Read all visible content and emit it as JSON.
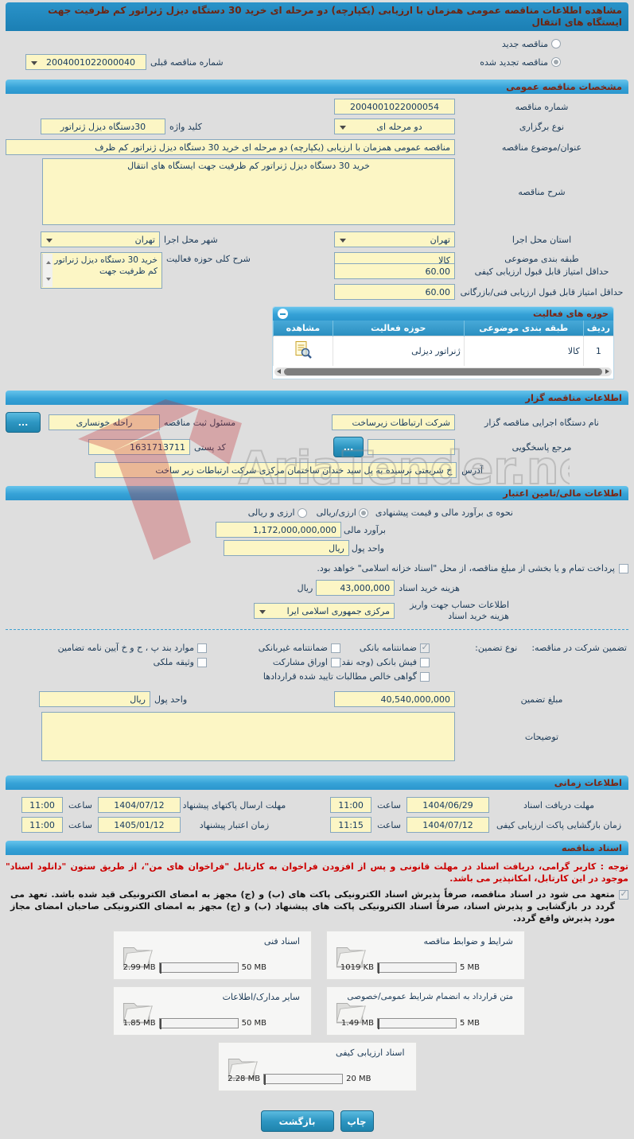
{
  "page": {
    "title": "مشاهده اطلاعات مناقصه عمومی همزمان با ارزیابی (یکپارچه) دو مرحله ای خرید 30 دستگاه دیزل ژنراتور کم ظرفیت جهت ایستگاه های انتقال"
  },
  "top": {
    "radio_new_label": "مناقصه جدید",
    "radio_renewed_label": "مناقصه تجدید شده",
    "prev_number_label": "شماره مناقصه قبلی",
    "prev_number_value": "2004001022000040"
  },
  "general": {
    "header": "مشخصات مناقصه عمومی",
    "number_label": "شماره مناقصه",
    "number_value": "2004001022000054",
    "type_label": "نوع برگزاری",
    "type_value": "دو مرحله ای",
    "keyword_label": "کلید واژه",
    "keyword_value": "30دستگاه دیزل ژنراتور",
    "subject_label": "عنوان/موضوع مناقصه",
    "subject_value": "مناقصه عمومی همزمان با ارزیابی (یکپارچه) دو مرحله ای خرید 30 دستگاه دیزل ژنراتور کم ظرف",
    "desc_label": "شرح مناقصه",
    "desc_value": "خرید 30 دستگاه دیزل ژنراتور کم ظرفیت جهت ایستگاه های انتقال",
    "province_label": "استان محل اجرا",
    "province_value": "تهران",
    "city_label": "شهر محل اجرا",
    "city_value": "تهران",
    "category_label": "طبقه بندی موضوعی",
    "category_value": "کالا",
    "activity_label": "شرح کلی حوزه فعالیت",
    "activity_value": "خرید 30 دستگاه دیزل ژنراتور کم ظرفیت جهت",
    "min_quality_label": "حداقل امتیاز قابل قبول ارزیابی کیفی",
    "min_quality_value": "60.00",
    "min_tech_label": "حداقل امتیاز قابل قبول ارزیابی فنی/بازرگانی",
    "min_tech_value": "60.00"
  },
  "activity_table": {
    "header": "حوزه های فعالیت",
    "columns": [
      "ردیف",
      "طبقه بندی موضوعی",
      "حوزه فعالیت",
      "مشاهده"
    ],
    "rows": [
      {
        "index": "1",
        "category": "کالا",
        "field": "ژنراتور دیزلی"
      }
    ]
  },
  "organizer": {
    "header": "اطلاعات مناقصه گزار",
    "agency_label": "نام دستگاه اجرایی مناقصه گزار",
    "agency_value": "شرکت ارتباطات زیرساخت",
    "registrar_label": "مسئول ثبت مناقصه",
    "registrar_value": "راحله خونساری",
    "more_button_label": "...",
    "contact_label": "مرجع پاسخگویی",
    "contact_value": "",
    "postal_label": "کد پستی",
    "postal_value": "1631713711",
    "address_label": "آدرس",
    "address_value": "خ شریعتی نرسیده به پل سید خندان ساختمان مرکزی شرکت ارتباطات زیر ساخت"
  },
  "financial": {
    "header": "اطلاعات مالی/تامین اعتبار",
    "estimate_mode_label": "نحوه ی برآورد مالی و قیمت پیشنهادی",
    "mode_rial_label": "ارزی/ریالی",
    "mode_both_label": "ارزی و ریالی",
    "estimate_label": "برآورد مالی",
    "estimate_value": "1,172,000,000,000",
    "currency_label": "واحد پول",
    "currency_value": "ریال",
    "treasury_note": "پرداخت تمام و یا بخشی از مبلغ مناقصه، از محل \"اسناد خزانه اسلامی\" خواهد بود.",
    "doc_fee_label": "هزینه خرید اسناد",
    "doc_fee_value": "43,000,000",
    "doc_fee_unit": "ریال",
    "account_label": "اطلاعات حساب جهت واریز هزینه خرید اسناد",
    "account_value": "مرکزی جمهوری اسلامی ایرا"
  },
  "guarantee": {
    "participation_label": "تضمین شرکت در مناقصه:",
    "type_label": "نوع تضمین:",
    "options": [
      {
        "label": "ضمانتنامه بانکی",
        "checked": true
      },
      {
        "label": "ضمانتنامه غیربانکی",
        "checked": false
      },
      {
        "label": "موارد بند پ ، ح و خ آیین نامه تضامین",
        "checked": false
      },
      {
        "label": "فیش بانکی (وجه نقد)",
        "checked": false
      },
      {
        "label": "اوراق مشارکت",
        "checked": false
      },
      {
        "label": "وثیقه ملکی",
        "checked": false
      },
      {
        "label": "گواهی خالص مطالبات تایید شده قراردادها",
        "checked": false
      }
    ],
    "amount_label": "مبلغ تضمین",
    "amount_value": "40,540,000,000",
    "currency_label": "واحد پول",
    "currency_value": "ریال",
    "notes_label": "توضیحات",
    "notes_value": ""
  },
  "schedule": {
    "header": "اطلاعات زمانی",
    "items": [
      {
        "label": "مهلت دریافت اسناد",
        "date": "1404/06/29",
        "time_label": "ساعت",
        "time": "11:00"
      },
      {
        "label": "مهلت ارسال پاکتهای پیشنهاد",
        "date": "1404/07/12",
        "time_label": "ساعت",
        "time": "11:00"
      },
      {
        "label": "زمان بازگشایی پاکت ارزیابی کیفی",
        "date": "1404/07/12",
        "time_label": "ساعت",
        "time": "11:15"
      },
      {
        "label": "زمان اعتبار پیشنهاد",
        "date": "1405/01/12",
        "time_label": "ساعت",
        "time": "11:00"
      }
    ]
  },
  "documents": {
    "header": "اسناد مناقصه",
    "notice": "توجه : کاربر گرامی، دریافت اسناد در مهلت قانونی و پس از افزودن فراخوان به کارتابل \"فراخوان های من\"، از طریق ستون \"دانلود اسناد\" موجود در این کارتابل، امکانپذیر می باشد.",
    "commitment": "متعهد می شود در اسناد مناقصه، صرفاً پذیرش اسناد الکترونیکی پاکت های (ب) و (ج) مجهز به امضای الکترونیکی قید شده باشد. تعهد می گردد در بازگشایی و پذیرش اسناد، صرفاً اسناد الکترونیکی پاکت های پیشنهاد (ب) و (ج) مجهز به امضای الکترونیکی صاحبان امضای مجاز مورد پذیرش واقع گردد.",
    "cards": [
      {
        "title": "شرایط و ضوابط مناقصه",
        "size": "1019 KB",
        "max": "5 MB",
        "percent": 20
      },
      {
        "title": "اسناد فنی",
        "size": "2.99 MB",
        "max": "50 MB",
        "percent": 6
      },
      {
        "title": "متن قرارداد به انضمام شرایط عمومی/خصوصی",
        "size": "1.49 MB",
        "max": "5 MB",
        "percent": 30
      },
      {
        "title": "سایر مدارک/اطلاعات",
        "size": "1.85 MB",
        "max": "50 MB",
        "percent": 4
      },
      {
        "title": "اسناد ارزیابی کیفی",
        "size": "2.28 MB",
        "max": "20 MB",
        "percent": 11
      }
    ]
  },
  "footer": {
    "print_label": "چاپ",
    "back_label": "بازگشت"
  },
  "watermark": {
    "text": "AriaTender.neT"
  },
  "icons": {
    "view_icon": "document-magnifier",
    "folder_icon": "open-folder",
    "collapse_icon": "minus-circle",
    "dropdown_icon": "chevron-down"
  },
  "colors": {
    "header_blue": "#2b96cd",
    "header_text_maroon": "#7d2511",
    "input_yellow": "#fcf6c5",
    "progress_green": "#7db93c",
    "notice_red": "#cc0000",
    "watermark_red": "#c1272d"
  }
}
